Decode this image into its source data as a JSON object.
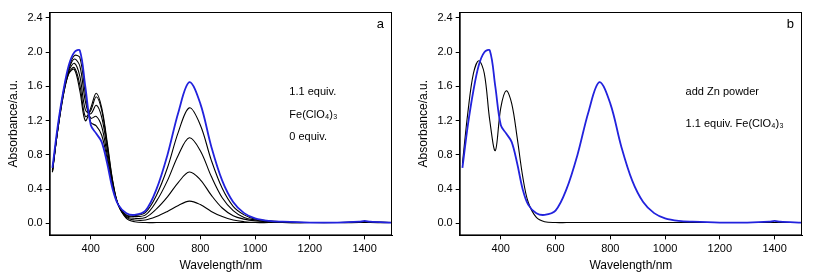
{
  "chart_data": [
    {
      "type": "line",
      "title": "a",
      "x_label": "Wavelength/nm",
      "y_label": "Absorbance/a.u.",
      "annotations": [
        "1.1 equiv.",
        "Fe(ClO₄)₃",
        "0 equiv."
      ],
      "x": [
        260,
        280,
        300,
        320,
        340,
        360,
        380,
        400,
        420,
        440,
        460,
        480,
        500,
        530,
        560,
        600,
        640,
        680,
        720,
        760,
        800,
        840,
        880,
        920,
        960,
        1000,
        1050,
        1100,
        1200,
        1300,
        1380,
        1400,
        1420,
        1500
      ],
      "xlim": [
        250,
        1500
      ],
      "xticks": [
        400,
        600,
        800,
        1000,
        1200,
        1400
      ],
      "ylim": [
        -0.14,
        2.47
      ],
      "yticks": [
        {
          "value": 0,
          "label": "0.0"
        },
        {
          "value": 0.4,
          "label": "0.4"
        },
        {
          "value": 0.8,
          "label": "0.8"
        },
        {
          "value": 1.2,
          "label": "1.2"
        },
        {
          "value": 1.6,
          "label": "1.6"
        },
        {
          "value": 2.0,
          "label": "2.0"
        },
        {
          "value": 2.4,
          "label": "2.4"
        }
      ],
      "grid": false,
      "series": [
        {
          "color": "#000000",
          "values": [
            0.6,
            1.1,
            1.5,
            1.75,
            1.8,
            1.55,
            1.2,
            1.35,
            1.52,
            1.35,
            0.95,
            0.5,
            0.22,
            0.06,
            0.02,
            0.01,
            0.01,
            0.01,
            0.01,
            0.01,
            0.01,
            0.01,
            0.01,
            0.01,
            0.01,
            0.01,
            0.01,
            0.01,
            0.01,
            0.01,
            0.01,
            0.01,
            0.01,
            0.01
          ]
        },
        {
          "color": "#000000",
          "values": [
            0.6,
            1.1,
            1.5,
            1.76,
            1.82,
            1.62,
            1.25,
            1.32,
            1.48,
            1.32,
            0.92,
            0.49,
            0.22,
            0.07,
            0.04,
            0.04,
            0.08,
            0.14,
            0.21,
            0.26,
            0.22,
            0.14,
            0.08,
            0.04,
            0.02,
            0.01,
            0.01,
            0.01,
            0.01,
            0.01,
            0.01,
            0.01,
            0.01,
            0.01
          ]
        },
        {
          "color": "#000000",
          "values": [
            0.61,
            1.11,
            1.52,
            1.78,
            1.87,
            1.72,
            1.33,
            1.28,
            1.38,
            1.24,
            0.87,
            0.47,
            0.22,
            0.08,
            0.06,
            0.07,
            0.17,
            0.31,
            0.48,
            0.6,
            0.51,
            0.33,
            0.18,
            0.09,
            0.05,
            0.03,
            0.02,
            0.01,
            0.01,
            0.01,
            0.01,
            0.01,
            0.01,
            0.01
          ]
        },
        {
          "color": "#000000",
          "values": [
            0.62,
            1.12,
            1.53,
            1.8,
            1.92,
            1.84,
            1.43,
            1.23,
            1.25,
            1.13,
            0.8,
            0.44,
            0.22,
            0.09,
            0.08,
            0.1,
            0.26,
            0.5,
            0.8,
            1.0,
            0.85,
            0.55,
            0.3,
            0.15,
            0.07,
            0.04,
            0.02,
            0.01,
            0.01,
            0.01,
            0.01,
            0.02,
            0.01,
            0.01
          ]
        },
        {
          "color": "#000000",
          "values": [
            0.63,
            1.13,
            1.54,
            1.82,
            1.96,
            1.94,
            1.52,
            1.18,
            1.14,
            1.03,
            0.75,
            0.42,
            0.22,
            0.1,
            0.09,
            0.13,
            0.33,
            0.65,
            1.07,
            1.35,
            1.15,
            0.74,
            0.41,
            0.2,
            0.1,
            0.05,
            0.03,
            0.02,
            0.01,
            0.01,
            0.02,
            0.02,
            0.02,
            0.01
          ]
        },
        {
          "color": "#2222dd",
          "values": [
            0.65,
            1.15,
            1.55,
            1.85,
            2.0,
            2.02,
            1.6,
            1.15,
            1.05,
            0.95,
            0.7,
            0.4,
            0.22,
            0.12,
            0.1,
            0.15,
            0.4,
            0.8,
            1.3,
            1.65,
            1.4,
            0.9,
            0.5,
            0.25,
            0.12,
            0.06,
            0.03,
            0.02,
            0.01,
            0.01,
            0.02,
            0.03,
            0.02,
            0.01
          ]
        }
      ]
    },
    {
      "type": "line",
      "title": "b",
      "x_label": "Wavelength/nm",
      "y_label": "Absorbance/a.u.",
      "annotations": [
        "add Zn powder",
        "1.1 equiv. Fe(ClO₄)₃"
      ],
      "x": [
        260,
        280,
        300,
        320,
        340,
        360,
        380,
        400,
        420,
        440,
        460,
        480,
        500,
        530,
        560,
        600,
        640,
        680,
        720,
        760,
        800,
        840,
        880,
        920,
        960,
        1000,
        1050,
        1100,
        1200,
        1300,
        1380,
        1400,
        1420,
        1500
      ],
      "xlim": [
        250,
        1500
      ],
      "xticks": [
        400,
        600,
        800,
        1000,
        1200,
        1400
      ],
      "ylim": [
        -0.14,
        2.47
      ],
      "yticks": [
        {
          "value": 0,
          "label": "0.0"
        },
        {
          "value": 0.4,
          "label": "0.4"
        },
        {
          "value": 0.8,
          "label": "0.8"
        },
        {
          "value": 1.2,
          "label": "1.2"
        },
        {
          "value": 1.6,
          "label": "1.6"
        },
        {
          "value": 2.0,
          "label": "2.0"
        },
        {
          "value": 2.4,
          "label": "2.4"
        }
      ],
      "grid": false,
      "series": [
        {
          "color": "#000000",
          "values": [
            0.7,
            1.3,
            1.75,
            1.9,
            1.75,
            1.2,
            0.85,
            1.35,
            1.55,
            1.4,
            1.0,
            0.55,
            0.25,
            0.07,
            0.02,
            0.01,
            0.01,
            0.01,
            0.01,
            0.01,
            0.01,
            0.01,
            0.01,
            0.01,
            0.01,
            0.01,
            0.01,
            0.01,
            0.01,
            0.01,
            0.01,
            0.01,
            0.01,
            0.01
          ]
        },
        {
          "color": "#2222dd",
          "values": [
            0.65,
            1.15,
            1.55,
            1.85,
            2.0,
            2.02,
            1.6,
            1.15,
            1.05,
            0.95,
            0.7,
            0.4,
            0.22,
            0.12,
            0.1,
            0.15,
            0.4,
            0.8,
            1.3,
            1.65,
            1.4,
            0.9,
            0.5,
            0.25,
            0.12,
            0.06,
            0.03,
            0.02,
            0.01,
            0.01,
            0.02,
            0.03,
            0.02,
            0.01
          ]
        }
      ]
    }
  ]
}
